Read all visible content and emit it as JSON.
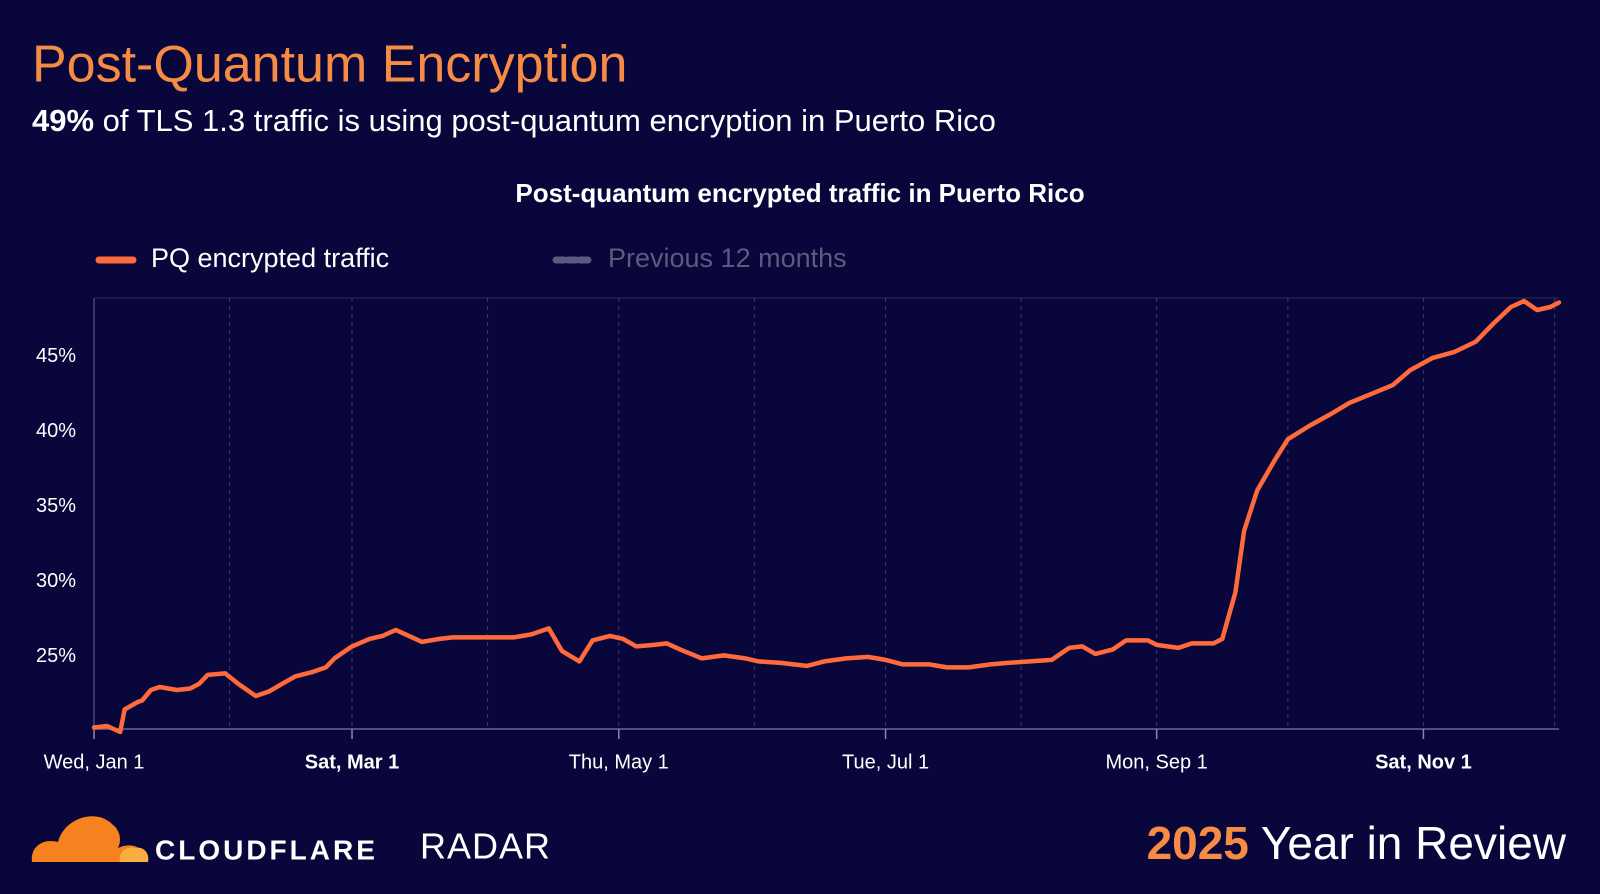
{
  "title": "Post-Quantum Encryption",
  "subtitle": {
    "highlight": "49%",
    "text": "of TLS 1.3 traffic is using post-quantum encryption in Puerto Rico"
  },
  "chart_data": {
    "type": "line",
    "title": "Post-quantum encrypted traffic in Puerto Rico",
    "x": [
      "2025-01-01",
      "2025-01-04",
      "2025-01-07",
      "2025-01-08",
      "2025-01-11",
      "2025-01-12",
      "2025-01-14",
      "2025-01-16",
      "2025-01-18",
      "2025-01-20",
      "2025-01-23",
      "2025-01-25",
      "2025-01-27",
      "2025-01-31",
      "2025-02-03",
      "2025-02-07",
      "2025-02-10",
      "2025-02-13",
      "2025-02-16",
      "2025-02-20",
      "2025-02-23",
      "2025-02-25",
      "2025-03-01",
      "2025-03-05",
      "2025-03-08",
      "2025-03-11",
      "2025-03-14",
      "2025-03-17",
      "2025-03-21",
      "2025-03-24",
      "2025-03-28",
      "2025-03-31",
      "2025-04-04",
      "2025-04-07",
      "2025-04-11",
      "2025-04-15",
      "2025-04-18",
      "2025-04-22",
      "2025-04-25",
      "2025-04-29",
      "2025-05-02",
      "2025-05-05",
      "2025-05-09",
      "2025-05-12",
      "2025-05-15",
      "2025-05-20",
      "2025-05-25",
      "2025-05-30",
      "2025-06-02",
      "2025-06-07",
      "2025-06-13",
      "2025-06-17",
      "2025-06-22",
      "2025-06-27",
      "2025-07-01",
      "2025-07-05",
      "2025-07-11",
      "2025-07-15",
      "2025-07-20",
      "2025-07-25",
      "2025-07-29",
      "2025-08-03",
      "2025-08-08",
      "2025-08-12",
      "2025-08-15",
      "2025-08-18",
      "2025-08-22",
      "2025-08-25",
      "2025-08-30",
      "2025-09-01",
      "2025-09-06",
      "2025-09-09",
      "2025-09-14",
      "2025-09-16",
      "2025-09-19",
      "2025-09-21",
      "2025-09-24",
      "2025-09-28",
      "2025-10-01",
      "2025-10-06",
      "2025-10-11",
      "2025-10-15",
      "2025-10-20",
      "2025-10-25",
      "2025-10-29",
      "2025-11-03",
      "2025-11-08",
      "2025-11-13",
      "2025-11-17",
      "2025-11-21",
      "2025-11-24",
      "2025-11-27",
      "2025-11-30",
      "2025-12-02"
    ],
    "series": [
      {
        "name": "PQ encrypted traffic",
        "color": "#ff6a3d",
        "values": [
          20.3,
          20.4,
          20.0,
          21.5,
          22.0,
          22.1,
          22.8,
          23.0,
          22.9,
          22.8,
          22.9,
          23.2,
          23.8,
          23.9,
          23.2,
          22.4,
          22.7,
          23.2,
          23.7,
          24.0,
          24.3,
          24.9,
          25.7,
          26.2,
          26.4,
          26.8,
          26.4,
          26.0,
          26.2,
          26.3,
          26.3,
          26.3,
          26.3,
          26.3,
          26.5,
          26.9,
          25.4,
          24.7,
          26.1,
          26.4,
          26.2,
          25.7,
          25.8,
          25.9,
          25.5,
          24.9,
          25.1,
          24.9,
          24.7,
          24.6,
          24.4,
          24.7,
          24.9,
          25.0,
          24.8,
          24.5,
          24.5,
          24.3,
          24.3,
          24.5,
          24.6,
          24.7,
          24.8,
          25.6,
          25.7,
          25.2,
          25.5,
          26.1,
          26.1,
          25.8,
          25.6,
          25.9,
          25.9,
          26.2,
          29.3,
          33.4,
          36.1,
          38.1,
          39.5,
          40.4,
          41.2,
          41.9,
          42.5,
          43.1,
          44.1,
          44.9,
          45.3,
          46.0,
          47.2,
          48.3,
          48.7,
          48.1,
          48.3,
          48.6
        ]
      },
      {
        "name": "Previous 12 months",
        "color": "#5c5a7e",
        "hidden": true
      }
    ],
    "xlim": [
      "2025-01-01",
      "2025-12-02"
    ],
    "xticks": [
      {
        "value": "2025-01-01",
        "label": "Wed, Jan 1"
      },
      {
        "value": "2025-02-01",
        "label": null
      },
      {
        "value": "2025-03-01",
        "label": "Sat, Mar 1",
        "bold": true
      },
      {
        "value": "2025-04-01",
        "label": null
      },
      {
        "value": "2025-05-01",
        "label": "Thu, May 1"
      },
      {
        "value": "2025-06-01",
        "label": null
      },
      {
        "value": "2025-07-01",
        "label": "Tue, Jul 1"
      },
      {
        "value": "2025-08-01",
        "label": null
      },
      {
        "value": "2025-09-01",
        "label": "Mon, Sep 1"
      },
      {
        "value": "2025-10-01",
        "label": null
      },
      {
        "value": "2025-11-01",
        "label": "Sat, Nov 1",
        "bold": true
      },
      {
        "value": "2025-12-01",
        "label": null
      }
    ],
    "ylim": [
      20.2,
      48.9
    ],
    "yticks": [
      {
        "value": 25,
        "label": "25%"
      },
      {
        "value": 30,
        "label": "30%"
      },
      {
        "value": 35,
        "label": "35%"
      },
      {
        "value": 40,
        "label": "40%"
      },
      {
        "value": 45,
        "label": "45%"
      }
    ],
    "grid": true
  },
  "footer": {
    "brand": "CLOUDFLARE",
    "product": "RADAR",
    "year": "2025",
    "tagline": "Year in Review"
  }
}
